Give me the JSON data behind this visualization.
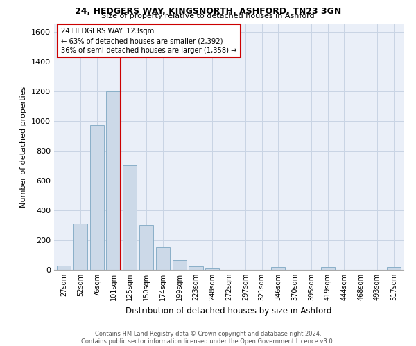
{
  "title1": "24, HEDGERS WAY, KINGSNORTH, ASHFORD, TN23 3GN",
  "title2": "Size of property relative to detached houses in Ashford",
  "xlabel": "Distribution of detached houses by size in Ashford",
  "ylabel": "Number of detached properties",
  "categories": [
    "27sqm",
    "52sqm",
    "76sqm",
    "101sqm",
    "125sqm",
    "150sqm",
    "174sqm",
    "199sqm",
    "223sqm",
    "248sqm",
    "272sqm",
    "297sqm",
    "321sqm",
    "346sqm",
    "370sqm",
    "395sqm",
    "419sqm",
    "444sqm",
    "468sqm",
    "493sqm",
    "517sqm"
  ],
  "values": [
    30,
    310,
    970,
    1200,
    700,
    300,
    155,
    65,
    25,
    10,
    0,
    0,
    0,
    20,
    0,
    0,
    20,
    0,
    0,
    0,
    20
  ],
  "bar_color": "#ccd9e8",
  "bar_edge_color": "#8aafc8",
  "vline_color": "#cc0000",
  "annotation_line1": "24 HEDGERS WAY: 123sqm",
  "annotation_line2": "← 63% of detached houses are smaller (2,392)",
  "annotation_line3": "36% of semi-detached houses are larger (1,358) →",
  "annotation_box_edge": "#cc0000",
  "ylim": [
    0,
    1650
  ],
  "yticks": [
    0,
    200,
    400,
    600,
    800,
    1000,
    1200,
    1400,
    1600
  ],
  "grid_color": "#c8d4e4",
  "bg_color": "#eaeff8",
  "footnote": "Contains HM Land Registry data © Crown copyright and database right 2024.\nContains public sector information licensed under the Open Government Licence v3.0."
}
